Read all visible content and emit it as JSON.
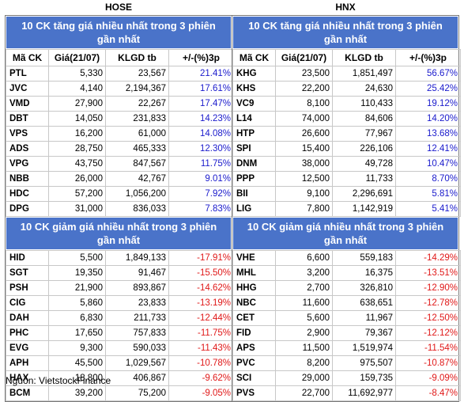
{
  "exchanges": [
    {
      "name": "HOSE",
      "gainers_title": "10 CK tăng giá nhiều nhất trong 3 phiên gần nhất",
      "losers_title": "10 CK giảm giá nhiều nhất trong 3 phiên gần nhất",
      "headers": [
        "Mã CK",
        "Giá(21/07)",
        "KLGD tb",
        "+/-(%)3p"
      ],
      "gainers": [
        {
          "sym": "PTL",
          "price": "5,330",
          "vol": "23,567",
          "chg": "21.41%"
        },
        {
          "sym": "JVC",
          "price": "4,140",
          "vol": "2,194,367",
          "chg": "17.61%"
        },
        {
          "sym": "VMD",
          "price": "27,900",
          "vol": "22,267",
          "chg": "17.47%"
        },
        {
          "sym": "DBT",
          "price": "14,050",
          "vol": "231,833",
          "chg": "14.23%"
        },
        {
          "sym": "VPS",
          "price": "16,200",
          "vol": "61,000",
          "chg": "14.08%"
        },
        {
          "sym": "ADS",
          "price": "28,750",
          "vol": "465,333",
          "chg": "12.30%"
        },
        {
          "sym": "VPG",
          "price": "43,750",
          "vol": "847,567",
          "chg": "11.75%"
        },
        {
          "sym": "NBB",
          "price": "26,000",
          "vol": "42,767",
          "chg": "9.01%"
        },
        {
          "sym": "HDC",
          "price": "57,200",
          "vol": "1,056,200",
          "chg": "7.92%"
        },
        {
          "sym": "DPG",
          "price": "31,000",
          "vol": "836,033",
          "chg": "7.83%"
        }
      ],
      "losers": [
        {
          "sym": "HID",
          "price": "5,500",
          "vol": "1,849,133",
          "chg": "-17.91%"
        },
        {
          "sym": "SGT",
          "price": "19,350",
          "vol": "91,467",
          "chg": "-15.50%"
        },
        {
          "sym": "PSH",
          "price": "21,900",
          "vol": "893,867",
          "chg": "-14.62%"
        },
        {
          "sym": "CIG",
          "price": "5,860",
          "vol": "23,833",
          "chg": "-13.19%"
        },
        {
          "sym": "DAH",
          "price": "6,830",
          "vol": "211,733",
          "chg": "-12.44%"
        },
        {
          "sym": "PHC",
          "price": "17,650",
          "vol": "757,833",
          "chg": "-11.75%"
        },
        {
          "sym": "EVG",
          "price": "9,300",
          "vol": "590,033",
          "chg": "-11.43%"
        },
        {
          "sym": "APH",
          "price": "45,500",
          "vol": "1,029,567",
          "chg": "-10.78%"
        },
        {
          "sym": "HAX",
          "price": "18,800",
          "vol": "406,867",
          "chg": "-9.62%"
        },
        {
          "sym": "BCM",
          "price": "39,200",
          "vol": "75,200",
          "chg": "-9.05%"
        }
      ]
    },
    {
      "name": "HNX",
      "gainers_title": "10 CK tăng giá nhiều nhất trong 3 phiên gần nhất",
      "losers_title": "10 CK giảm giá nhiều nhất trong 3 phiên gần nhất",
      "headers": [
        "Mã CK",
        "Giá(21/07)",
        "KLGD tb",
        "+/-(%)3p"
      ],
      "gainers": [
        {
          "sym": "KHG",
          "price": "23,500",
          "vol": "1,851,497",
          "chg": "56.67%"
        },
        {
          "sym": "KHS",
          "price": "22,200",
          "vol": "24,630",
          "chg": "25.42%"
        },
        {
          "sym": "VC9",
          "price": "8,100",
          "vol": "110,433",
          "chg": "19.12%"
        },
        {
          "sym": "L14",
          "price": "74,000",
          "vol": "84,606",
          "chg": "14.20%"
        },
        {
          "sym": "HTP",
          "price": "26,600",
          "vol": "77,967",
          "chg": "13.68%"
        },
        {
          "sym": "SPI",
          "price": "15,400",
          "vol": "226,106",
          "chg": "12.41%"
        },
        {
          "sym": "DNM",
          "price": "38,000",
          "vol": "49,728",
          "chg": "10.47%"
        },
        {
          "sym": "PPP",
          "price": "12,500",
          "vol": "11,733",
          "chg": "8.70%"
        },
        {
          "sym": "BII",
          "price": "9,100",
          "vol": "2,296,691",
          "chg": "5.81%"
        },
        {
          "sym": "LIG",
          "price": "7,800",
          "vol": "1,142,919",
          "chg": "5.41%"
        }
      ],
      "losers": [
        {
          "sym": "VHE",
          "price": "6,600",
          "vol": "559,183",
          "chg": "-14.29%"
        },
        {
          "sym": "MHL",
          "price": "3,200",
          "vol": "16,375",
          "chg": "-13.51%"
        },
        {
          "sym": "HHG",
          "price": "2,700",
          "vol": "326,810",
          "chg": "-12.90%"
        },
        {
          "sym": "NBC",
          "price": "11,600",
          "vol": "638,651",
          "chg": "-12.78%"
        },
        {
          "sym": "CET",
          "price": "5,600",
          "vol": "11,967",
          "chg": "-12.50%"
        },
        {
          "sym": "FID",
          "price": "2,900",
          "vol": "79,367",
          "chg": "-12.12%"
        },
        {
          "sym": "APS",
          "price": "11,500",
          "vol": "1,519,974",
          "chg": "-11.54%"
        },
        {
          "sym": "PVC",
          "price": "8,200",
          "vol": "975,507",
          "chg": "-10.87%"
        },
        {
          "sym": "SCI",
          "price": "29,000",
          "vol": "159,735",
          "chg": "-9.09%"
        },
        {
          "sym": "PVS",
          "price": "22,700",
          "vol": "11,692,977",
          "chg": "-8.47%"
        }
      ]
    }
  ],
  "source": "Nguồn: VietstockFinance",
  "colors": {
    "banner": "#4a73c9",
    "positive": "#1a1acc",
    "negative": "#e01818"
  }
}
